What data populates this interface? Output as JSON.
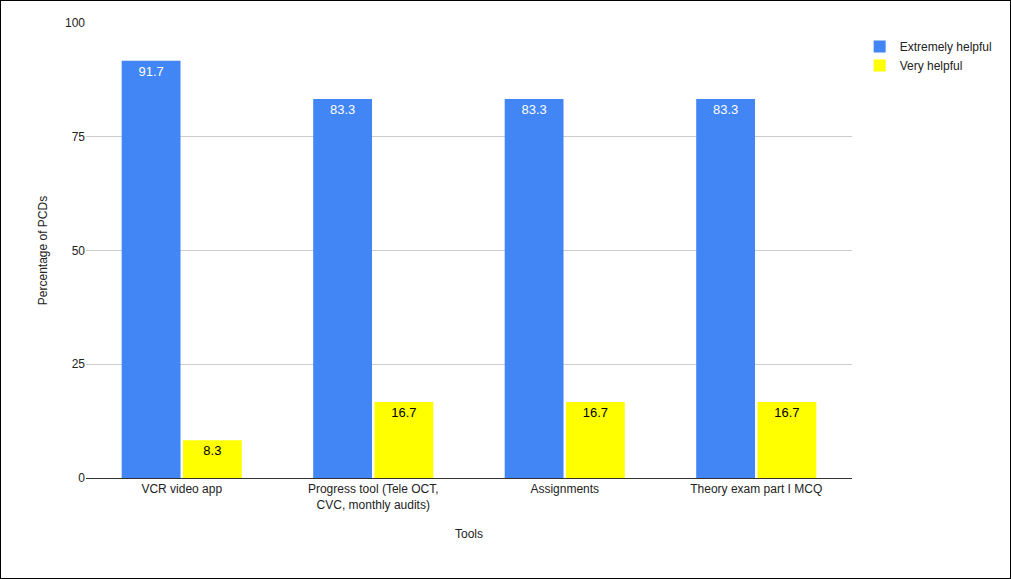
{
  "chart_data": {
    "type": "bar",
    "x_label": "Tools",
    "y_label": "Percentage of PCDs",
    "categories": [
      "VCR video app",
      "Progress tool (Tele OCT, CVC, monthly audits)",
      "Assignments",
      "Theory exam part I MCQ"
    ],
    "series": [
      {
        "name": "Extremely helpful",
        "color": "#4285f4",
        "values": [
          91.7,
          83.3,
          83.3,
          83.3
        ]
      },
      {
        "name": "Very helpful",
        "color": "#ffff00",
        "values": [
          8.3,
          16.7,
          16.7,
          16.7
        ]
      }
    ],
    "ylim": [
      0,
      100
    ],
    "yticks": [
      0,
      25,
      50,
      75,
      100
    ],
    "grid": true,
    "legend": "right",
    "data_labels": true
  }
}
